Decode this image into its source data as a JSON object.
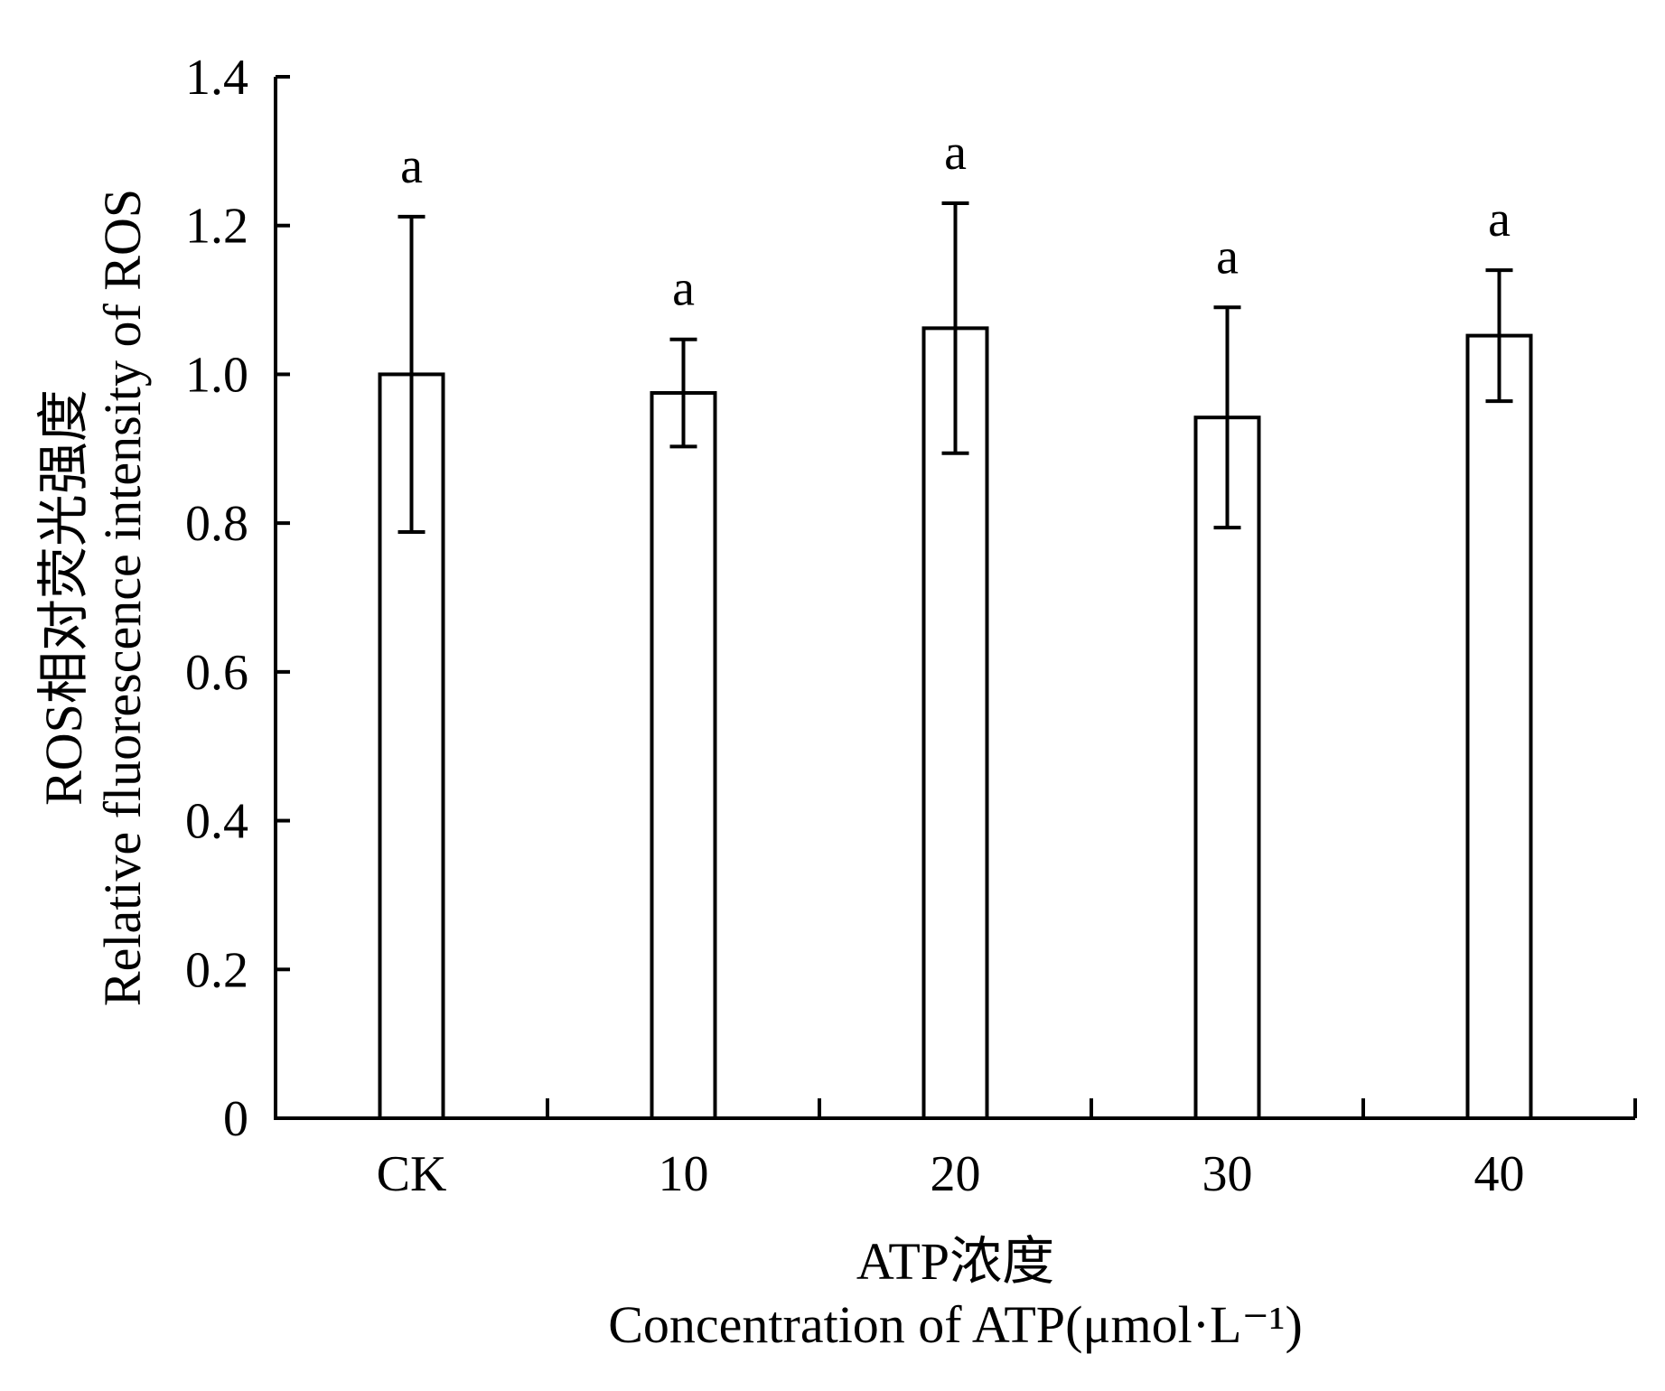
{
  "chart_data": {
    "type": "bar",
    "categories": [
      "CK",
      "10",
      "20",
      "30",
      "40"
    ],
    "series": [
      {
        "values": [
          1.0,
          0.975,
          1.062,
          0.942,
          1.052
        ],
        "error": [
          0.212,
          0.072,
          0.168,
          0.148,
          0.088
        ],
        "significance": [
          "a",
          "a",
          "a",
          "a",
          "a"
        ]
      }
    ],
    "ylim": [
      0,
      1.4
    ],
    "yticks": [
      0,
      0.2,
      0.4,
      0.6,
      0.8,
      1.0,
      1.2,
      1.4
    ],
    "ytick_labels": [
      "0",
      "0.2",
      "0.4",
      "0.6",
      "0.8",
      "1.0",
      "1.2",
      "1.4"
    ],
    "ylabel": {
      "line1": "ROS相对荧光强度",
      "line2": "Relative fluorescence intensity of ROS"
    },
    "xlabel": {
      "line1": "ATP浓度",
      "line2": "Concentration of ATP(μmol·L⁻¹)"
    },
    "grid": false,
    "legend": false,
    "colors": {
      "bar_fill": "#ffffff",
      "bar_stroke": "#000000",
      "axis": "#000000"
    }
  }
}
